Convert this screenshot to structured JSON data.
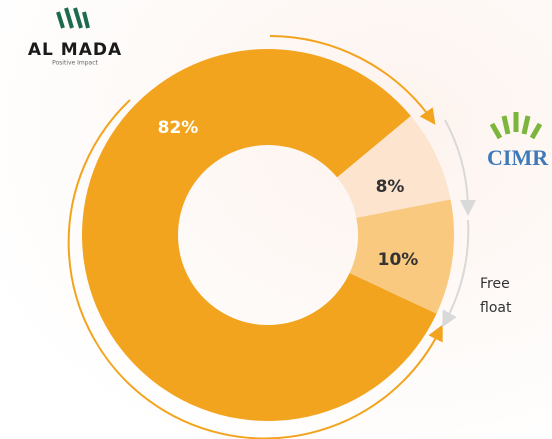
{
  "chart_data": {
    "type": "pie",
    "categories": [
      "AL MADA",
      "CIMR",
      "Free float"
    ],
    "values": [
      82,
      8,
      10
    ],
    "value_labels": [
      "82%",
      "8%",
      "10%"
    ],
    "colors": [
      "#f3a41e",
      "#fde4cf",
      "#f8c97e"
    ],
    "logo_tagline": "Positive Impact"
  }
}
